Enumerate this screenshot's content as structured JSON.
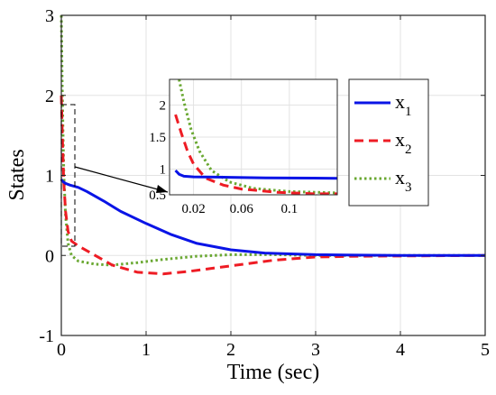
{
  "chart_data": {
    "type": "line",
    "title": "",
    "xlabel": "Time (sec)",
    "ylabel": "States",
    "xlim": [
      0,
      5
    ],
    "ylim": [
      -1,
      3
    ],
    "xticks": [
      "0",
      "1",
      "2",
      "3",
      "4",
      "5"
    ],
    "yticks": [
      "-1",
      "0",
      "1",
      "2",
      "3"
    ],
    "grid": true,
    "legend_position": "top-right",
    "series": [
      {
        "name": "x",
        "subscript": "1",
        "color": "#0a14e6",
        "style": "solid",
        "points": [
          [
            0,
            0.95
          ],
          [
            0.01,
            0.93
          ],
          [
            0.05,
            0.9
          ],
          [
            0.1,
            0.88
          ],
          [
            0.2,
            0.85
          ],
          [
            0.3,
            0.8
          ],
          [
            0.5,
            0.68
          ],
          [
            0.7,
            0.55
          ],
          [
            1.0,
            0.4
          ],
          [
            1.3,
            0.26
          ],
          [
            1.6,
            0.15
          ],
          [
            2.0,
            0.07
          ],
          [
            2.4,
            0.03
          ],
          [
            3.0,
            0.01
          ],
          [
            4.0,
            0.0
          ],
          [
            5.0,
            0.0
          ]
        ]
      },
      {
        "name": "x",
        "subscript": "2",
        "color": "#ee1c24",
        "style": "dashed",
        "points": [
          [
            0,
            2.0
          ],
          [
            0.01,
            1.6
          ],
          [
            0.02,
            1.2
          ],
          [
            0.03,
            0.9
          ],
          [
            0.05,
            0.55
          ],
          [
            0.08,
            0.3
          ],
          [
            0.12,
            0.18
          ],
          [
            0.2,
            0.12
          ],
          [
            0.4,
            0.0
          ],
          [
            0.6,
            -0.12
          ],
          [
            0.9,
            -0.21
          ],
          [
            1.2,
            -0.23
          ],
          [
            1.5,
            -0.2
          ],
          [
            2.0,
            -0.13
          ],
          [
            2.5,
            -0.06
          ],
          [
            3.0,
            -0.02
          ],
          [
            3.5,
            -0.01
          ],
          [
            5.0,
            0.0
          ]
        ]
      },
      {
        "name": "x",
        "subscript": "3",
        "color": "#6aa832",
        "style": "dotted",
        "points": [
          [
            0,
            3.0
          ],
          [
            0.01,
            2.2
          ],
          [
            0.02,
            1.5
          ],
          [
            0.03,
            1.0
          ],
          [
            0.05,
            0.5
          ],
          [
            0.08,
            0.15
          ],
          [
            0.12,
            0.0
          ],
          [
            0.2,
            -0.07
          ],
          [
            0.4,
            -0.11
          ],
          [
            0.6,
            -0.12
          ],
          [
            0.9,
            -0.09
          ],
          [
            1.2,
            -0.05
          ],
          [
            1.6,
            -0.01
          ],
          [
            2.0,
            0.01
          ],
          [
            2.5,
            0.01
          ],
          [
            3.0,
            0.0
          ],
          [
            5.0,
            0.0
          ]
        ]
      }
    ],
    "inset": {
      "xlim": [
        0,
        0.14
      ],
      "ylim": [
        0.6,
        2.4
      ],
      "xticks": [
        "0.02",
        "0.06",
        "0.1"
      ],
      "yticks": [
        "0.5",
        "1",
        "1.5",
        "2"
      ],
      "series": [
        {
          "points": [
            [
              0.005,
              0.98
            ],
            [
              0.008,
              0.92
            ],
            [
              0.012,
              0.89
            ],
            [
              0.02,
              0.88
            ],
            [
              0.04,
              0.875
            ],
            [
              0.08,
              0.865
            ],
            [
              0.12,
              0.86
            ],
            [
              0.14,
              0.858
            ]
          ]
        },
        {
          "points": [
            [
              0.005,
              1.85
            ],
            [
              0.01,
              1.55
            ],
            [
              0.015,
              1.28
            ],
            [
              0.02,
              1.08
            ],
            [
              0.03,
              0.86
            ],
            [
              0.045,
              0.75
            ],
            [
              0.06,
              0.69
            ],
            [
              0.09,
              0.64
            ],
            [
              0.12,
              0.615
            ],
            [
              0.14,
              0.615
            ]
          ]
        },
        {
          "points": [
            [
              0.008,
              2.4
            ],
            [
              0.012,
              2.05
            ],
            [
              0.018,
              1.62
            ],
            [
              0.025,
              1.28
            ],
            [
              0.035,
              0.98
            ],
            [
              0.05,
              0.8
            ],
            [
              0.07,
              0.7
            ],
            [
              0.1,
              0.65
            ],
            [
              0.13,
              0.635
            ],
            [
              0.14,
              0.63
            ]
          ]
        }
      ]
    }
  }
}
